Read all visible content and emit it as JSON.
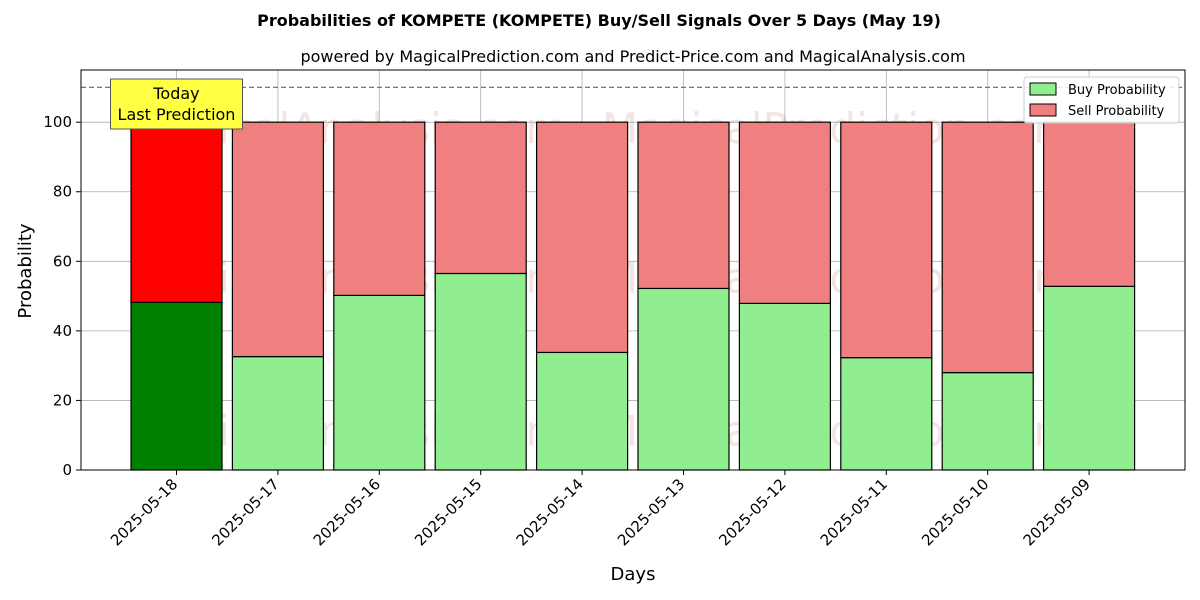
{
  "chart_data": {
    "type": "bar",
    "stacked": true,
    "title": "Probabilities of KOMPETE (KOMPETE) Buy/Sell Signals Over 5 Days (May 19)",
    "subtitle": "powered by MagicalPrediction.com and Predict-Price.com and MagicalAnalysis.com",
    "xlabel": "Days",
    "ylabel": "Probability",
    "ylim": [
      0,
      115
    ],
    "yticks": [
      0,
      20,
      40,
      60,
      80,
      100
    ],
    "grid": true,
    "legend_position": "top-right",
    "reference_line": 110,
    "categories": [
      "2025-05-18",
      "2025-05-17",
      "2025-05-16",
      "2025-05-15",
      "2025-05-14",
      "2025-05-13",
      "2025-05-12",
      "2025-05-11",
      "2025-05-10",
      "2025-05-09"
    ],
    "series": [
      {
        "name": "Buy Probability",
        "color": "#90ee90",
        "highlight_color": "#008000",
        "values": [
          48.2,
          32.6,
          50.2,
          56.5,
          33.8,
          52.2,
          47.9,
          32.3,
          28.0,
          52.8
        ]
      },
      {
        "name": "Sell Probability",
        "color": "#f08080",
        "highlight_color": "#ff0000",
        "values": [
          51.8,
          67.4,
          49.8,
          43.5,
          66.2,
          47.8,
          52.1,
          67.7,
          72.0,
          47.2
        ]
      }
    ],
    "annotation": {
      "lines": [
        "Today",
        "Last Prediction"
      ],
      "category": "2025-05-18",
      "color": "#ffff44"
    }
  },
  "watermarks": [
    "MagicalAnalysis.com",
    "MagicalPrediction.com"
  ]
}
